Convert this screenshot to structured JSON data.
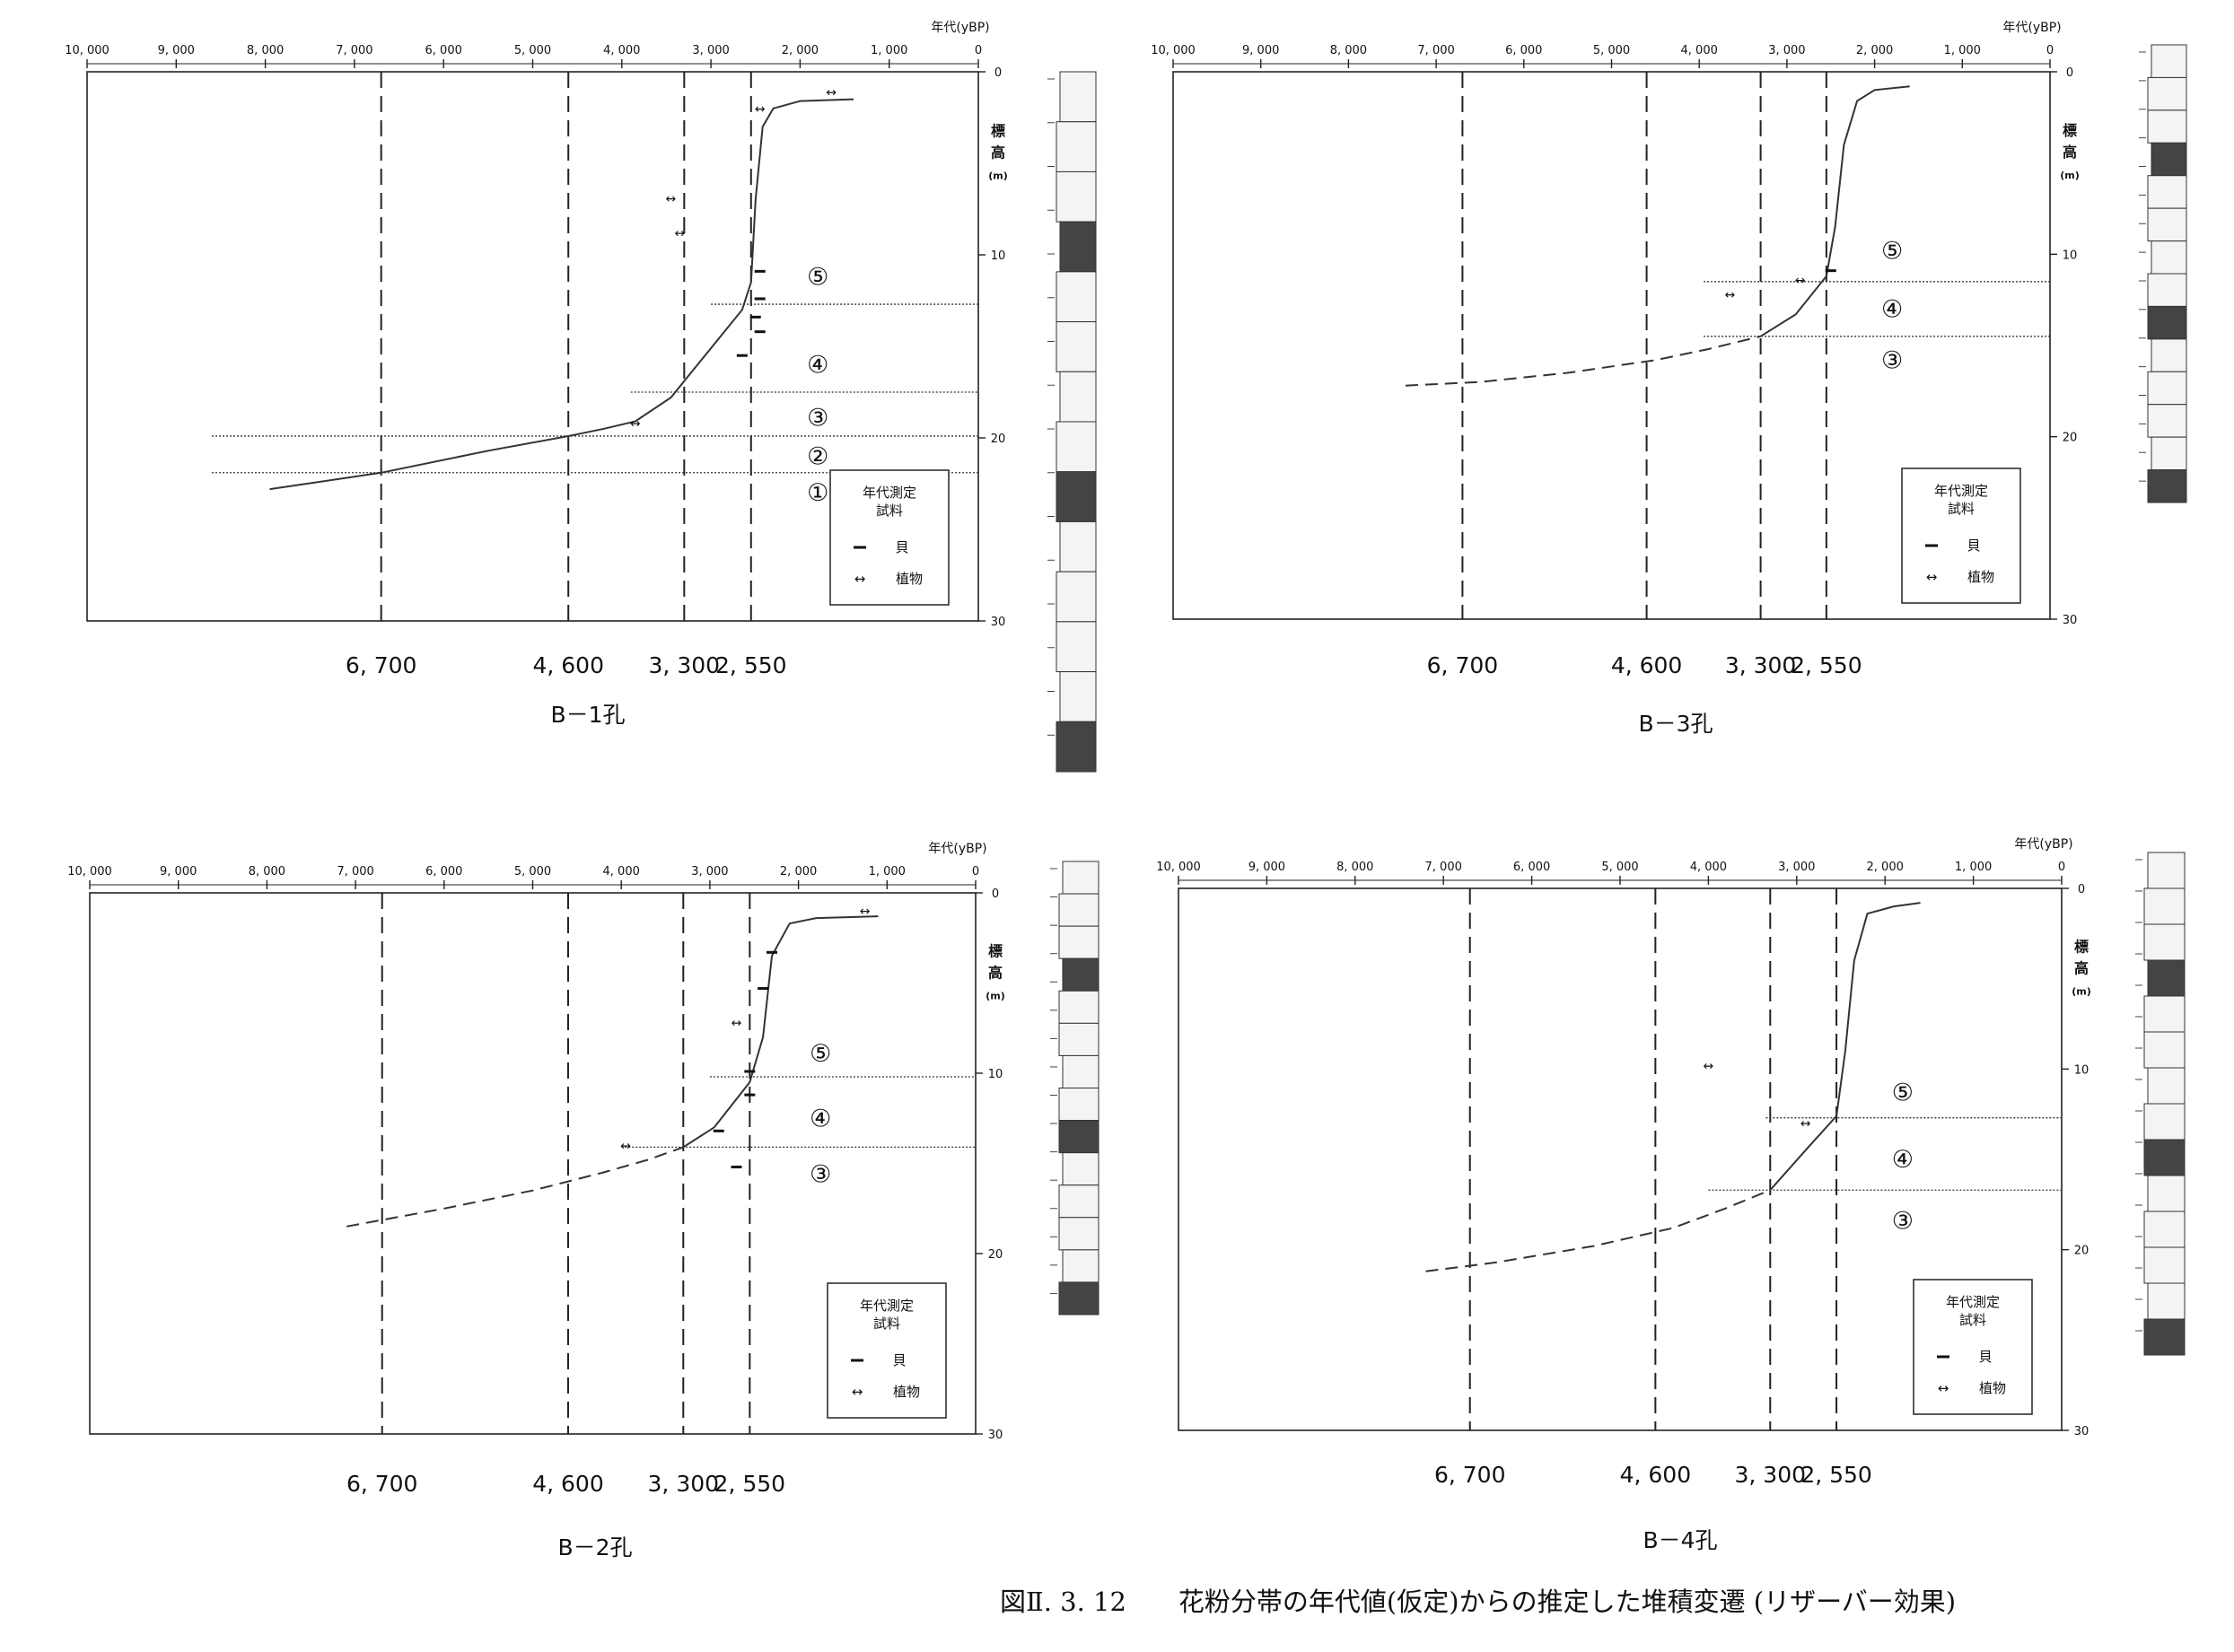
{
  "caption": "図Ⅱ. 3. 12　　花粉分帯の年代値(仮定)からの推定した堆積変遷 (リザーバー効果)",
  "shared": {
    "x_axis_title": "年代(yBP)",
    "y_axis_title_chars": [
      "標",
      "高",
      "(m)"
    ],
    "x_ticks": [
      10000,
      9000,
      8000,
      7000,
      6000,
      5000,
      4000,
      3000,
      2000,
      1000,
      0
    ],
    "x_tick_labels": [
      "10, 000",
      "9, 000",
      "8, 000",
      "7, 000",
      "6, 000",
      "5, 000",
      "4, 000",
      "3, 000",
      "2, 000",
      "1, 000",
      "0"
    ],
    "y_ticks": [
      0,
      10,
      20,
      30
    ],
    "y_tick_labels": [
      "0",
      "10",
      "20",
      "30"
    ],
    "pollen_zone_ages": [
      6700,
      4600,
      3300,
      2550
    ],
    "pollen_zone_age_labels": [
      "6, 700",
      "4, 600",
      "3, 300",
      "2, 550"
    ],
    "legend": {
      "title_line1": "年代測定",
      "title_line2": "試料",
      "shell_symbol": "━",
      "shell_label": "貝",
      "plant_symbol": "↔",
      "plant_label": "植物"
    }
  },
  "chart_data": [
    {
      "type": "line",
      "title": "B－1孔",
      "x_reversed": true,
      "xlim": [
        10000,
        0
      ],
      "ylim": [
        0,
        30
      ],
      "vlines": [
        6700,
        4600,
        3300,
        2550
      ],
      "curve_solid": [
        [
          7950,
          22.8
        ],
        [
          6700,
          21.9
        ],
        [
          5500,
          20.7
        ],
        [
          4600,
          19.9
        ],
        [
          4200,
          19.5
        ],
        [
          3850,
          19.1
        ],
        [
          3450,
          17.8
        ],
        [
          3200,
          16.3
        ],
        [
          2950,
          14.8
        ],
        [
          2650,
          13.0
        ],
        [
          2550,
          11.5
        ],
        [
          2500,
          7.0
        ],
        [
          2420,
          3.0
        ],
        [
          2300,
          2.0
        ],
        [
          2000,
          1.6
        ],
        [
          1400,
          1.5
        ]
      ],
      "curve_dashed": [],
      "zone_boundaries": [
        {
          "depth": 12.7,
          "x_from": 3000
        },
        {
          "depth": 17.5,
          "x_from": 3900
        },
        {
          "depth": 19.9,
          "x_from": 8600
        },
        {
          "depth": 21.9,
          "x_from": 8600
        }
      ],
      "zone_labels": [
        {
          "text": "⑤",
          "x": 1800,
          "y": 11.2
        },
        {
          "text": "④",
          "x": 1800,
          "y": 16.0
        },
        {
          "text": "③",
          "x": 1800,
          "y": 18.9
        },
        {
          "text": "②",
          "x": 1800,
          "y": 21.0
        },
        {
          "text": "①",
          "x": 1800,
          "y": 23.0
        }
      ],
      "samples_plant": [
        [
          1650,
          1.1
        ],
        [
          2450,
          2.0
        ],
        [
          3450,
          6.9
        ],
        [
          3350,
          8.8
        ],
        [
          3850,
          19.2
        ]
      ],
      "samples_shell": [
        [
          2450,
          10.9
        ],
        [
          2450,
          12.4
        ],
        [
          2500,
          13.4
        ],
        [
          2450,
          14.2
        ],
        [
          2650,
          15.5
        ]
      ]
    },
    {
      "type": "line",
      "title": "B－3孔",
      "x_reversed": true,
      "xlim": [
        10000,
        0
      ],
      "ylim": [
        0,
        30
      ],
      "vlines": [
        6700,
        4600,
        3300,
        2550
      ],
      "curve_solid": [
        [
          3300,
          14.5
        ],
        [
          2900,
          13.3
        ],
        [
          2550,
          11.2
        ],
        [
          2450,
          8.5
        ],
        [
          2350,
          4.0
        ],
        [
          2200,
          1.6
        ],
        [
          2000,
          1.0
        ],
        [
          1600,
          0.8
        ]
      ],
      "curve_dashed": [
        [
          7350,
          17.2
        ],
        [
          6500,
          17.0
        ],
        [
          5500,
          16.5
        ],
        [
          4500,
          15.8
        ],
        [
          3900,
          15.2
        ],
        [
          3300,
          14.5
        ]
      ],
      "zone_boundaries": [
        {
          "depth": 11.5,
          "x_from": 3950
        },
        {
          "depth": 14.5,
          "x_from": 3950
        }
      ],
      "zone_labels": [
        {
          "text": "⑤",
          "x": 1800,
          "y": 9.8
        },
        {
          "text": "④",
          "x": 1800,
          "y": 13.0
        },
        {
          "text": "③",
          "x": 1800,
          "y": 15.8
        }
      ],
      "samples_plant": [
        [
          3650,
          12.2
        ],
        [
          2850,
          11.4
        ]
      ],
      "samples_shell": [
        [
          2500,
          10.9
        ]
      ]
    },
    {
      "type": "line",
      "title": "B－2孔",
      "x_reversed": true,
      "xlim": [
        10000,
        0
      ],
      "ylim": [
        0,
        30
      ],
      "vlines": [
        6700,
        4600,
        3300,
        2550
      ],
      "curve_solid": [
        [
          3300,
          14.1
        ],
        [
          2950,
          13.0
        ],
        [
          2550,
          10.5
        ],
        [
          2400,
          8.0
        ],
        [
          2300,
          3.5
        ],
        [
          2100,
          1.7
        ],
        [
          1800,
          1.4
        ],
        [
          1100,
          1.3
        ]
      ],
      "curve_dashed": [
        [
          7100,
          18.5
        ],
        [
          6000,
          17.5
        ],
        [
          5000,
          16.5
        ],
        [
          4200,
          15.5
        ],
        [
          3700,
          14.8
        ],
        [
          3300,
          14.1
        ]
      ],
      "zone_boundaries": [
        {
          "depth": 10.2,
          "x_from": 3000
        },
        {
          "depth": 14.1,
          "x_from": 4000
        }
      ],
      "zone_labels": [
        {
          "text": "⑤",
          "x": 1750,
          "y": 8.9
        },
        {
          "text": "④",
          "x": 1750,
          "y": 12.5
        },
        {
          "text": "③",
          "x": 1750,
          "y": 15.6
        }
      ],
      "samples_plant": [
        [
          2700,
          7.2
        ],
        [
          3950,
          14.0
        ],
        [
          1250,
          1.0
        ]
      ],
      "samples_shell": [
        [
          2300,
          3.3
        ],
        [
          2400,
          5.3
        ],
        [
          2550,
          9.9
        ],
        [
          2550,
          11.2
        ],
        [
          2900,
          13.2
        ],
        [
          2700,
          15.2
        ]
      ]
    },
    {
      "type": "line",
      "title": "B－4孔",
      "x_reversed": true,
      "xlim": [
        10000,
        0
      ],
      "ylim": [
        0,
        30
      ],
      "vlines": [
        6700,
        4600,
        3300,
        2550
      ],
      "curve_solid": [
        [
          3300,
          16.7
        ],
        [
          2900,
          14.5
        ],
        [
          2550,
          12.6
        ],
        [
          2450,
          9.0
        ],
        [
          2350,
          4.0
        ],
        [
          2200,
          1.4
        ],
        [
          1900,
          1.0
        ],
        [
          1600,
          0.8
        ]
      ],
      "curve_dashed": [
        [
          7200,
          21.2
        ],
        [
          6400,
          20.7
        ],
        [
          5300,
          19.8
        ],
        [
          4400,
          18.8
        ],
        [
          3800,
          17.7
        ],
        [
          3300,
          16.7
        ]
      ],
      "zone_boundaries": [
        {
          "depth": 12.7,
          "x_from": 3350
        },
        {
          "depth": 16.7,
          "x_from": 4000
        }
      ],
      "zone_labels": [
        {
          "text": "⑤",
          "x": 1800,
          "y": 11.3
        },
        {
          "text": "④",
          "x": 1800,
          "y": 15.0
        },
        {
          "text": "③",
          "x": 1800,
          "y": 18.4
        }
      ],
      "samples_plant": [
        [
          4000,
          9.8
        ],
        [
          2900,
          13.0
        ]
      ],
      "samples_shell": []
    }
  ]
}
